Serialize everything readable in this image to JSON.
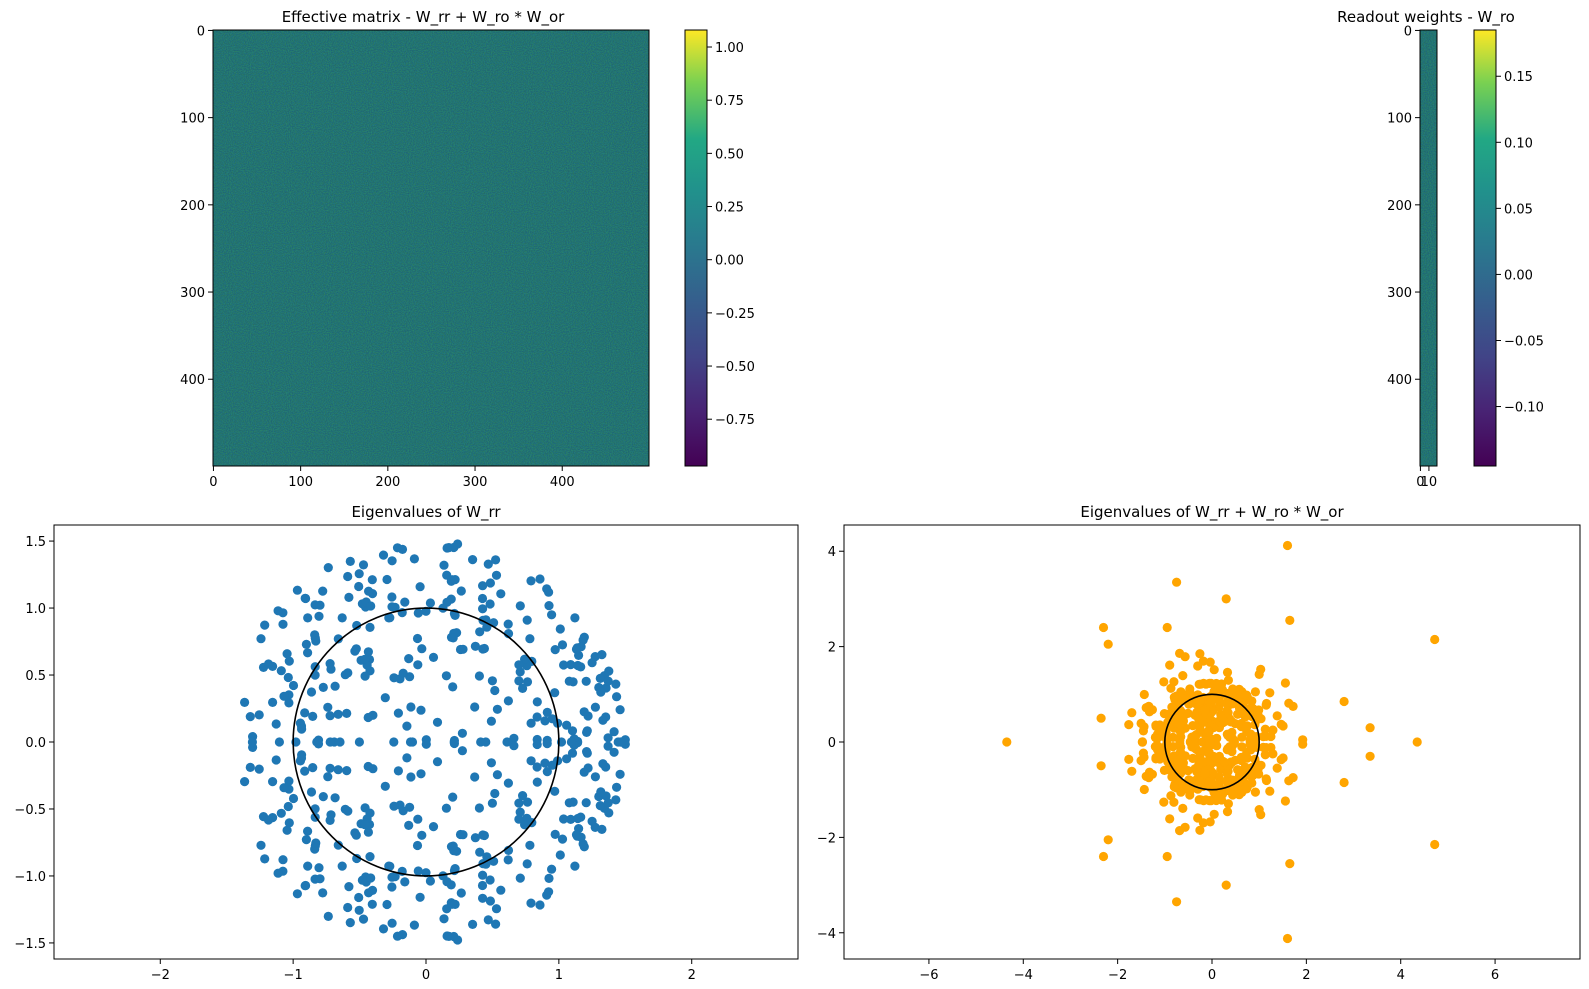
{
  "chart_data": [
    {
      "type": "heatmap",
      "title": "Effective matrix - W_rr + W_ro * W_or",
      "shape": [
        500,
        500
      ],
      "colormap": "viridis",
      "xticks": [
        "0",
        "100",
        "200",
        "300",
        "400"
      ],
      "yticks": [
        "0",
        "100",
        "200",
        "300",
        "400"
      ],
      "colorbar": {
        "vmin": -0.97,
        "vmax": 1.08,
        "ticks": [
          "1.00",
          "0.75",
          "0.50",
          "0.25",
          "0.00",
          "−0.25",
          "−0.50",
          "−0.75"
        ]
      }
    },
    {
      "type": "heatmap",
      "title": "Readout weights - W_ro",
      "shape": [
        500,
        20
      ],
      "colormap": "viridis",
      "xticks": [
        "0",
        "10"
      ],
      "yticks": [
        "0",
        "100",
        "200",
        "300",
        "400"
      ],
      "colorbar": {
        "vmin": -0.145,
        "vmax": 0.185,
        "ticks": [
          "0.15",
          "0.10",
          "0.05",
          "0.00",
          "−0.05",
          "−0.10"
        ]
      }
    },
    {
      "type": "scatter",
      "title": "Eigenvalues of W_rr",
      "color": "#1f77b4",
      "xlim": [
        -2.8,
        2.8
      ],
      "ylim": [
        -1.62,
        1.62
      ],
      "xticks": [
        "−2",
        "−1",
        "0",
        "1",
        "2"
      ],
      "yticks": [
        "1.5",
        "1.0",
        "0.5",
        "0.0",
        "−0.5",
        "−1.0",
        "−1.5"
      ],
      "unit_circle": true,
      "points_note": "500 eigenvalues filling a disk of radius ~1.5 centered at origin"
    },
    {
      "type": "scatter",
      "title": "Eigenvalues of W_rr + W_ro * W_or",
      "color": "#ffa500",
      "xlim": [
        -7.8,
        7.8
      ],
      "ylim": [
        -4.55,
        4.55
      ],
      "xticks": [
        "−6",
        "−4",
        "−2",
        "0",
        "2",
        "4",
        "6"
      ],
      "yticks": [
        "4",
        "2",
        "0",
        "−2",
        "−4"
      ],
      "unit_circle": true,
      "outliers": [
        [
          -4.35,
          0
        ],
        [
          4.35,
          0
        ],
        [
          4.72,
          2.15
        ],
        [
          4.72,
          -2.15
        ],
        [
          3.35,
          0.3
        ],
        [
          3.35,
          -0.3
        ],
        [
          2.8,
          0.85
        ],
        [
          2.8,
          -0.85
        ],
        [
          1.6,
          4.12
        ],
        [
          1.6,
          -4.12
        ],
        [
          1.65,
          2.55
        ],
        [
          1.65,
          -2.55
        ],
        [
          0.3,
          3.0
        ],
        [
          0.3,
          -3.0
        ],
        [
          -0.75,
          3.35
        ],
        [
          -0.75,
          -3.35
        ],
        [
          -2.3,
          2.4
        ],
        [
          -2.3,
          -2.4
        ],
        [
          -2.2,
          2.05
        ],
        [
          -2.2,
          -2.05
        ],
        [
          -2.35,
          0.5
        ],
        [
          -2.35,
          -0.5
        ],
        [
          -0.95,
          2.4
        ],
        [
          -0.95,
          -2.4
        ]
      ]
    }
  ]
}
